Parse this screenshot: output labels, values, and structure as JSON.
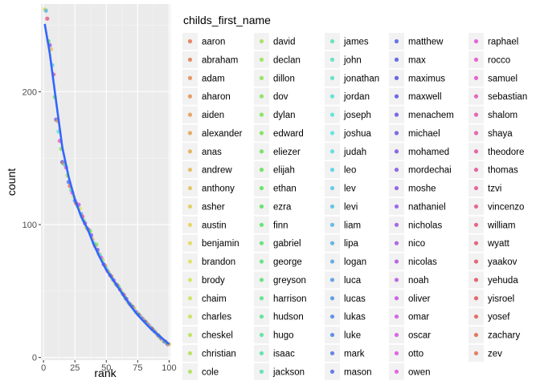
{
  "chart_data": {
    "type": "scatter",
    "xlabel": "rank",
    "ylabel": "count",
    "x_ticks": [
      "0",
      "25",
      "50",
      "75",
      "100"
    ],
    "y_ticks": [
      "0",
      "100",
      "200"
    ],
    "xlim": [
      -2,
      101
    ],
    "ylim": [
      -2,
      266
    ],
    "grid": true,
    "legend_title": "childs_first_name",
    "legend_position": "right",
    "smooth_line_color": "#3366FF",
    "panel_background": "#EBEBEB",
    "names": [
      "aaron",
      "abraham",
      "adam",
      "aharon",
      "aiden",
      "alexander",
      "anas",
      "andrew",
      "anthony",
      "asher",
      "austin",
      "benjamin",
      "brandon",
      "brody",
      "chaim",
      "charles",
      "cheskel",
      "christian",
      "cole",
      "david",
      "declan",
      "dillon",
      "dov",
      "dylan",
      "edward",
      "eliezer",
      "elijah",
      "ethan",
      "ezra",
      "finn",
      "gabriel",
      "george",
      "greyson",
      "harrison",
      "hudson",
      "hugo",
      "isaac",
      "jackson",
      "james",
      "john",
      "jonathan",
      "jordan",
      "joseph",
      "joshua",
      "judah",
      "leo",
      "lev",
      "levi",
      "liam",
      "lipa",
      "logan",
      "luca",
      "lucas",
      "lukas",
      "luke",
      "mark",
      "mason",
      "matthew",
      "max",
      "maximus",
      "maxwell",
      "menachem",
      "michael",
      "mohamed",
      "mordechai",
      "moshe",
      "nathaniel",
      "nicholas",
      "nico",
      "nicolas",
      "noah",
      "oliver",
      "omar",
      "oscar",
      "otto",
      "owen",
      "raphael",
      "rocco",
      "samuel",
      "sebastian",
      "shalom",
      "shaya",
      "theodore",
      "thomas",
      "tzvi",
      "vincenzo",
      "william",
      "wyatt",
      "yaakov",
      "yehuda",
      "yisroel",
      "yosef",
      "zachary",
      "zev"
    ],
    "points": [
      {
        "x": 1,
        "y": 262
      },
      {
        "x": 2,
        "y": 261
      },
      {
        "x": 3,
        "y": 255
      },
      {
        "x": 4,
        "y": 238
      },
      {
        "x": 5,
        "y": 235
      },
      {
        "x": 6,
        "y": 232
      },
      {
        "x": 7,
        "y": 220
      },
      {
        "x": 8,
        "y": 213
      },
      {
        "x": 9,
        "y": 196
      },
      {
        "x": 10,
        "y": 179
      },
      {
        "x": 11,
        "y": 178
      },
      {
        "x": 12,
        "y": 170
      },
      {
        "x": 13,
        "y": 163
      },
      {
        "x": 14,
        "y": 157
      },
      {
        "x": 15,
        "y": 147
      },
      {
        "x": 16,
        "y": 146
      },
      {
        "x": 17,
        "y": 145
      },
      {
        "x": 18,
        "y": 143
      },
      {
        "x": 19,
        "y": 137
      },
      {
        "x": 20,
        "y": 132
      },
      {
        "x": 21,
        "y": 129
      },
      {
        "x": 22,
        "y": 126
      },
      {
        "x": 23,
        "y": 124
      },
      {
        "x": 24,
        "y": 121
      },
      {
        "x": 25,
        "y": 118
      },
      {
        "x": 26,
        "y": 116
      },
      {
        "x": 27,
        "y": 114
      },
      {
        "x": 28,
        "y": 115
      },
      {
        "x": 29,
        "y": 112
      },
      {
        "x": 30,
        "y": 108
      },
      {
        "x": 31,
        "y": 106
      },
      {
        "x": 32,
        "y": 103
      },
      {
        "x": 33,
        "y": 101
      },
      {
        "x": 34,
        "y": 98
      },
      {
        "x": 35,
        "y": 97
      },
      {
        "x": 36,
        "y": 96
      },
      {
        "x": 37,
        "y": 95
      },
      {
        "x": 38,
        "y": 92
      },
      {
        "x": 39,
        "y": 89
      },
      {
        "x": 40,
        "y": 86
      },
      {
        "x": 41,
        "y": 84
      },
      {
        "x": 42,
        "y": 85
      },
      {
        "x": 43,
        "y": 81
      },
      {
        "x": 44,
        "y": 78
      },
      {
        "x": 45,
        "y": 77
      },
      {
        "x": 46,
        "y": 75
      },
      {
        "x": 47,
        "y": 73
      },
      {
        "x": 48,
        "y": 70
      },
      {
        "x": 49,
        "y": 69
      },
      {
        "x": 50,
        "y": 67
      },
      {
        "x": 51,
        "y": 65
      },
      {
        "x": 52,
        "y": 64
      },
      {
        "x": 53,
        "y": 62
      },
      {
        "x": 54,
        "y": 61
      },
      {
        "x": 55,
        "y": 59
      },
      {
        "x": 56,
        "y": 58
      },
      {
        "x": 57,
        "y": 56
      },
      {
        "x": 58,
        "y": 55
      },
      {
        "x": 59,
        "y": 54
      },
      {
        "x": 60,
        "y": 53
      },
      {
        "x": 61,
        "y": 51
      },
      {
        "x": 62,
        "y": 50
      },
      {
        "x": 63,
        "y": 48
      },
      {
        "x": 64,
        "y": 47
      },
      {
        "x": 65,
        "y": 45
      },
      {
        "x": 66,
        "y": 44
      },
      {
        "x": 67,
        "y": 42
      },
      {
        "x": 68,
        "y": 41
      },
      {
        "x": 69,
        "y": 40
      },
      {
        "x": 70,
        "y": 39
      },
      {
        "x": 71,
        "y": 38
      },
      {
        "x": 72,
        "y": 37
      },
      {
        "x": 73,
        "y": 35
      },
      {
        "x": 74,
        "y": 34
      },
      {
        "x": 75,
        "y": 33
      },
      {
        "x": 76,
        "y": 32
      },
      {
        "x": 77,
        "y": 31
      },
      {
        "x": 78,
        "y": 30
      },
      {
        "x": 79,
        "y": 29
      },
      {
        "x": 80,
        "y": 28
      },
      {
        "x": 81,
        "y": 27
      },
      {
        "x": 82,
        "y": 26
      },
      {
        "x": 83,
        "y": 25
      },
      {
        "x": 84,
        "y": 24
      },
      {
        "x": 85,
        "y": 23
      },
      {
        "x": 86,
        "y": 22
      },
      {
        "x": 87,
        "y": 21
      },
      {
        "x": 88,
        "y": 20
      },
      {
        "x": 89,
        "y": 19
      },
      {
        "x": 90,
        "y": 18
      },
      {
        "x": 91,
        "y": 17
      },
      {
        "x": 92,
        "y": 16
      },
      {
        "x": 93,
        "y": 15
      },
      {
        "x": 94,
        "y": 14
      },
      {
        "x": 95,
        "y": 13
      },
      {
        "x": 96,
        "y": 12
      },
      {
        "x": 97,
        "y": 12
      },
      {
        "x": 98,
        "y": 11
      },
      {
        "x": 99,
        "y": 10
      },
      {
        "x": 100,
        "y": 10
      }
    ],
    "smooth": [
      {
        "x": 1,
        "y": 251
      },
      {
        "x": 5,
        "y": 229
      },
      {
        "x": 10,
        "y": 193
      },
      {
        "x": 15,
        "y": 158
      },
      {
        "x": 20,
        "y": 136
      },
      {
        "x": 25,
        "y": 119
      },
      {
        "x": 30,
        "y": 106
      },
      {
        "x": 35,
        "y": 97
      },
      {
        "x": 40,
        "y": 85
      },
      {
        "x": 45,
        "y": 75
      },
      {
        "x": 50,
        "y": 66
      },
      {
        "x": 55,
        "y": 59
      },
      {
        "x": 60,
        "y": 52
      },
      {
        "x": 65,
        "y": 45
      },
      {
        "x": 70,
        "y": 38
      },
      {
        "x": 75,
        "y": 32
      },
      {
        "x": 80,
        "y": 27
      },
      {
        "x": 85,
        "y": 22
      },
      {
        "x": 90,
        "y": 18
      },
      {
        "x": 95,
        "y": 14
      },
      {
        "x": 100,
        "y": 10
      }
    ]
  }
}
